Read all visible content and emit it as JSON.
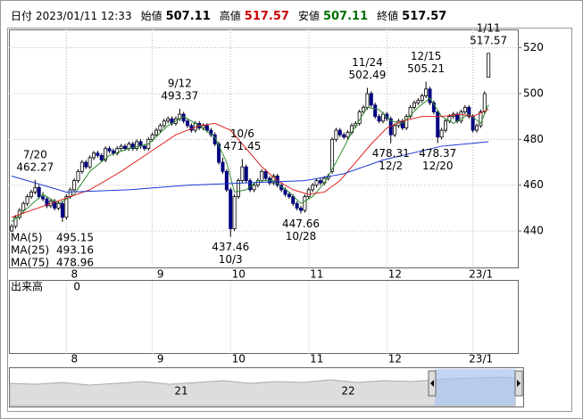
{
  "chart_data": {
    "type": "candlestick",
    "header": [
      {
        "label": "日付",
        "value": "2023/01/11 12:33"
      },
      {
        "label": "始値",
        "value": 507.11,
        "color": "#000000"
      },
      {
        "label": "高値",
        "value": 517.57,
        "color": "#d00000"
      },
      {
        "label": "安値",
        "value": 507.11,
        "color": "#007000"
      },
      {
        "label": "終値",
        "value": 517.57,
        "color": "#000000"
      }
    ],
    "ohlc": [
      [
        440,
        443,
        438,
        442
      ],
      [
        442,
        447,
        441,
        446
      ],
      [
        446,
        450,
        445,
        449
      ],
      [
        449,
        453,
        448,
        452
      ],
      [
        452,
        456,
        451,
        455
      ],
      [
        455,
        458,
        454,
        457
      ],
      [
        457,
        462.27,
        456,
        459
      ],
      [
        459,
        460,
        454,
        455
      ],
      [
        455,
        457,
        453,
        454
      ],
      [
        454,
        455,
        450,
        451
      ],
      [
        451,
        454,
        450,
        453
      ],
      [
        453,
        454,
        449,
        450
      ],
      [
        450,
        453,
        449,
        452
      ],
      [
        452,
        453,
        444,
        446
      ],
      [
        446,
        456,
        445,
        455
      ],
      [
        455,
        459,
        454,
        458
      ],
      [
        458,
        463,
        457,
        462
      ],
      [
        462,
        467,
        461,
        466
      ],
      [
        466,
        471,
        465,
        470
      ],
      [
        470,
        471,
        467,
        468
      ],
      [
        468,
        473,
        467,
        472
      ],
      [
        472,
        475,
        471,
        474
      ],
      [
        474,
        475,
        472,
        473
      ],
      [
        473,
        474,
        470,
        471
      ],
      [
        471,
        477,
        470,
        476
      ],
      [
        476,
        477,
        474,
        475
      ],
      [
        475,
        476,
        473,
        474
      ],
      [
        474,
        477,
        473,
        476
      ],
      [
        476,
        478,
        475,
        477
      ],
      [
        477,
        478,
        475,
        476
      ],
      [
        476,
        479,
        475,
        478
      ],
      [
        478,
        479,
        475,
        476
      ],
      [
        476,
        480,
        475,
        479
      ],
      [
        479,
        480,
        476,
        477
      ],
      [
        477,
        478,
        475,
        476
      ],
      [
        476,
        481,
        475,
        480
      ],
      [
        480,
        483,
        479,
        482
      ],
      [
        482,
        485,
        481,
        484
      ],
      [
        484,
        487,
        483,
        486
      ],
      [
        486,
        489,
        485,
        488
      ],
      [
        488,
        490,
        487,
        489
      ],
      [
        489,
        490,
        486,
        487
      ],
      [
        487,
        490,
        486,
        489
      ],
      [
        489,
        493.37,
        488,
        491
      ],
      [
        491,
        492,
        487,
        488
      ],
      [
        488,
        489,
        485,
        486
      ],
      [
        486,
        487,
        483,
        484
      ],
      [
        484,
        488,
        483,
        487
      ],
      [
        487,
        488,
        484,
        485
      ],
      [
        485,
        487,
        484,
        486
      ],
      [
        486,
        487,
        483,
        484
      ],
      [
        484,
        485,
        481,
        482
      ],
      [
        482,
        483,
        477,
        478
      ],
      [
        478,
        479,
        469,
        470
      ],
      [
        470,
        472,
        465,
        466
      ],
      [
        466,
        467,
        457,
        458
      ],
      [
        458,
        459,
        437.46,
        441
      ],
      [
        441,
        456,
        440,
        455
      ],
      [
        455,
        463,
        454,
        462
      ],
      [
        462,
        471.45,
        461,
        468
      ],
      [
        468,
        469,
        461,
        462
      ],
      [
        462,
        463,
        457,
        458
      ],
      [
        458,
        461,
        457,
        460
      ],
      [
        460,
        463,
        459,
        462
      ],
      [
        462,
        467,
        461,
        466
      ],
      [
        466,
        467,
        462,
        463
      ],
      [
        463,
        464,
        460,
        461
      ],
      [
        461,
        465,
        460,
        464
      ],
      [
        464,
        465,
        459,
        460
      ],
      [
        460,
        461,
        457,
        458
      ],
      [
        458,
        459,
        455,
        456
      ],
      [
        456,
        457,
        454,
        455
      ],
      [
        455,
        456,
        451,
        452
      ],
      [
        452,
        453,
        449,
        450
      ],
      [
        450,
        451,
        447.66,
        449
      ],
      [
        449,
        456,
        448,
        455
      ],
      [
        455,
        459,
        454,
        458
      ],
      [
        458,
        461,
        457,
        460
      ],
      [
        460,
        463,
        459,
        462
      ],
      [
        462,
        463,
        460,
        461
      ],
      [
        461,
        464,
        460,
        463
      ],
      [
        463,
        465,
        462,
        464
      ],
      [
        466,
        481,
        465,
        480
      ],
      [
        480,
        485,
        479,
        484
      ],
      [
        484,
        485,
        481,
        482
      ],
      [
        482,
        483,
        480,
        481
      ],
      [
        481,
        484,
        480,
        483
      ],
      [
        483,
        487,
        482,
        486
      ],
      [
        486,
        488,
        485,
        487
      ],
      [
        487,
        493,
        486,
        492
      ],
      [
        492,
        495,
        491,
        494
      ],
      [
        494,
        502.49,
        493,
        500
      ],
      [
        500,
        501,
        494,
        495
      ],
      [
        495,
        496,
        489,
        490
      ],
      [
        490,
        491,
        487,
        488
      ],
      [
        488,
        492,
        487,
        491
      ],
      [
        491,
        492,
        488,
        489
      ],
      [
        489,
        490,
        478.31,
        482
      ],
      [
        482,
        487,
        481,
        486
      ],
      [
        486,
        489,
        485,
        488
      ],
      [
        488,
        489,
        484,
        485
      ],
      [
        485,
        491,
        484,
        490
      ],
      [
        490,
        495,
        489,
        494
      ],
      [
        494,
        497,
        493,
        496
      ],
      [
        496,
        498,
        495,
        497
      ],
      [
        497,
        500,
        496,
        499
      ],
      [
        499,
        505.21,
        498,
        502
      ],
      [
        502,
        503,
        495,
        496
      ],
      [
        496,
        497,
        491,
        492
      ],
      [
        492,
        493,
        478.37,
        481
      ],
      [
        481,
        485,
        480,
        484
      ],
      [
        484,
        489,
        483,
        488
      ],
      [
        488,
        491,
        487,
        490
      ],
      [
        490,
        492,
        489,
        491
      ],
      [
        491,
        492,
        487,
        488
      ],
      [
        488,
        493,
        487,
        492
      ],
      [
        492,
        495,
        491,
        494
      ],
      [
        494,
        495,
        489,
        490
      ],
      [
        490,
        491,
        483,
        484
      ],
      [
        484,
        487,
        483,
        486
      ],
      [
        486,
        493,
        485,
        492
      ],
      [
        492,
        501,
        491,
        500
      ],
      [
        507.11,
        517.57,
        507.11,
        517.57
      ]
    ],
    "up_color": "#ffffff",
    "down_color": "#000080",
    "series": [
      {
        "name": "MA(5)",
        "color": "#2e8b2e",
        "last": 495.15,
        "x": [
          0,
          4,
          8,
          12,
          16,
          20,
          25,
          30,
          35,
          40,
          44,
          48,
          52,
          55,
          57,
          60,
          63,
          67,
          71,
          74,
          77,
          80,
          83,
          87,
          91,
          94,
          97,
          100,
          104,
          107,
          110,
          113,
          117,
          120,
          122
        ],
        "values": [
          444,
          450,
          456,
          452,
          456,
          466,
          473,
          476,
          478,
          486,
          490,
          486,
          481,
          470,
          457,
          458,
          462,
          462,
          457,
          452,
          455,
          461,
          470,
          483,
          494,
          493,
          488,
          487,
          494,
          498,
          490,
          487,
          491,
          487,
          495.15
        ]
      },
      {
        "name": "MA(25)",
        "color": "#e02020",
        "last": 493.16,
        "x": [
          0,
          10,
          20,
          28,
          35,
          42,
          48,
          52,
          56,
          60,
          64,
          68,
          72,
          76,
          80,
          84,
          88,
          92,
          96,
          100,
          105,
          110,
          115,
          118,
          122
        ],
        "values": [
          446,
          452,
          458,
          466,
          474,
          482,
          486,
          487,
          484,
          476,
          468,
          462,
          458,
          456,
          457,
          462,
          470,
          478,
          485,
          488,
          490,
          490,
          491,
          490,
          493.16
        ]
      },
      {
        "name": "MA(75)",
        "color": "#1a3ad0",
        "last": 478.96,
        "x": [
          0,
          14,
          30,
          45,
          60,
          75,
          85,
          95,
          105,
          110,
          122
        ],
        "values": [
          464,
          457,
          458,
          460,
          461,
          462,
          465,
          471,
          475,
          477,
          478.96
        ]
      }
    ],
    "annotations": [
      {
        "date": "7/20",
        "value": 462.27
      },
      {
        "date": "9/12",
        "value": 493.37
      },
      {
        "date": "10/3",
        "value": 437.46
      },
      {
        "date": "10/6",
        "value": 471.45
      },
      {
        "date": "10/28",
        "value": 447.66
      },
      {
        "date": "11/24",
        "value": 502.49
      },
      {
        "date": "12/2",
        "value": 478.31
      },
      {
        "date": "12/15",
        "value": 505.21
      },
      {
        "date": "12/20",
        "value": 478.37
      },
      {
        "date": "1/11",
        "value": 517.57
      }
    ],
    "xlim": [
      -0.7,
      129.5
    ],
    "xticks": [
      {
        "value": 14,
        "label": "8"
      },
      {
        "value": 36,
        "label": "9"
      },
      {
        "value": 56,
        "label": "10"
      },
      {
        "value": 76,
        "label": "11"
      },
      {
        "value": 96,
        "label": "12"
      },
      {
        "value": 118,
        "label": "23/1"
      }
    ],
    "ylim": [
      424.1,
      528
    ],
    "yticks": [
      440,
      460,
      480,
      500,
      520
    ],
    "grid": true,
    "volume": {
      "label": "出来高",
      "value": 0
    },
    "navigator": {
      "labels": [
        "21",
        "22"
      ]
    }
  }
}
